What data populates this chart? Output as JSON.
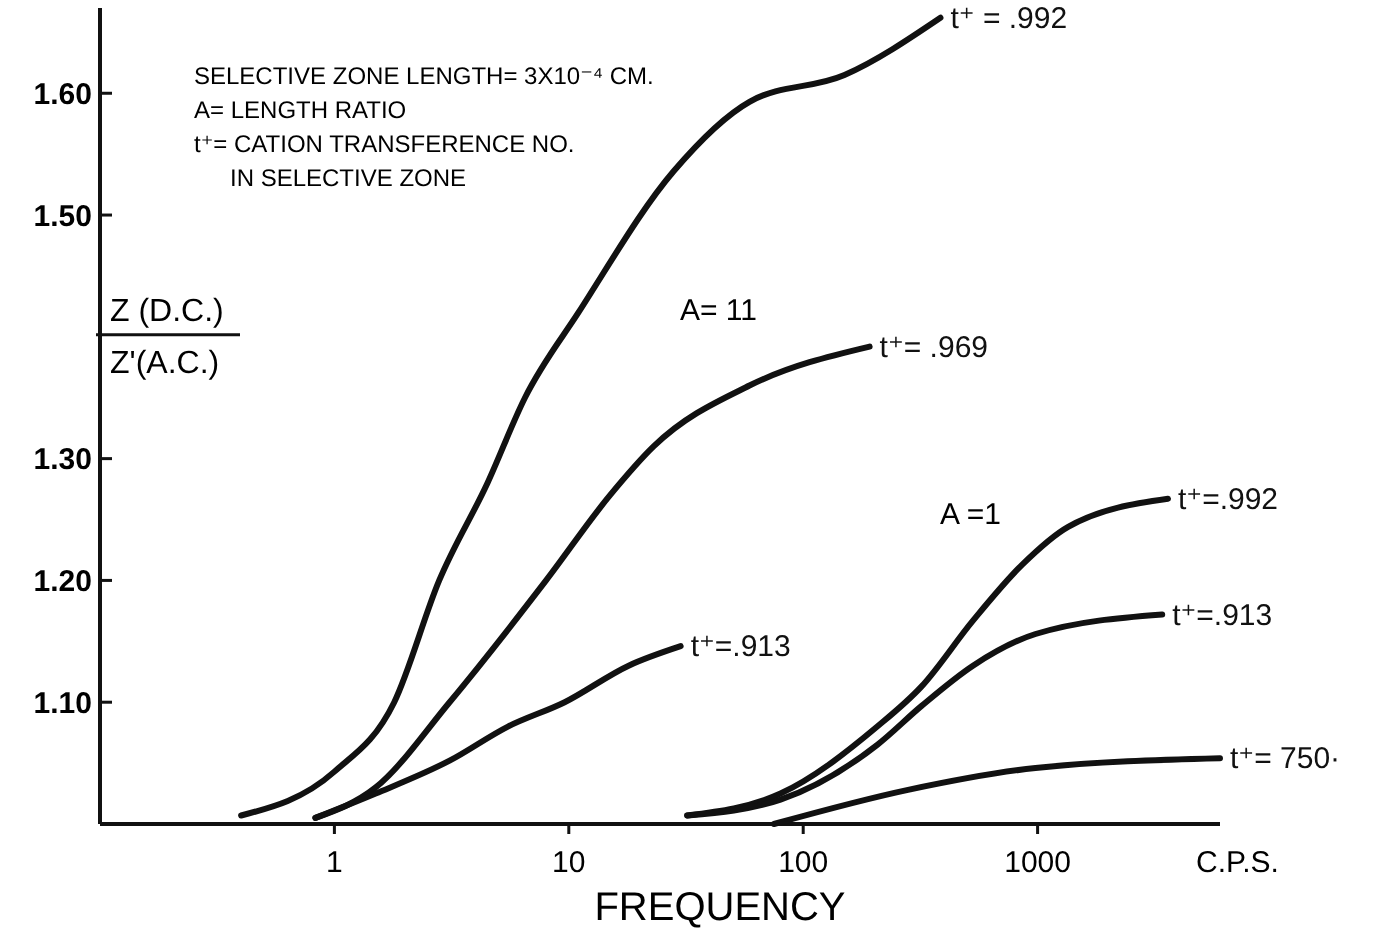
{
  "chart_data": {
    "type": "line",
    "xlabel": "FREQUENCY",
    "ylabel": "Z (D.C.) Z'(A.C.)",
    "log": "x",
    "xlim": [
      0.1,
      6000
    ],
    "ylim": [
      1.0,
      1.67
    ],
    "xticks": [
      1,
      10,
      100,
      1000
    ],
    "yticks": [
      {
        "value": 1.1,
        "label": "1.10"
      },
      {
        "value": 1.2,
        "label": "1.20"
      },
      {
        "value": 1.3,
        "label": "1.30"
      },
      {
        "value": 1.5,
        "label": "1.50"
      },
      {
        "value": 1.6,
        "label": "1.60"
      }
    ],
    "grid": false,
    "legend": false,
    "marker": "none",
    "line_style": "solid",
    "series": [
      {
        "name": "t⁺ = .992",
        "color": "#111111",
        "x": [
          0.4,
          1,
          1.8,
          2.8,
          4.5,
          6.5,
          11,
          28,
          59,
          150,
          385
        ],
        "values": [
          1.007,
          1.043,
          1.1,
          1.2,
          1.28,
          1.35,
          1.42,
          1.536,
          1.593,
          1.615,
          1.662
        ]
      },
      {
        "name": "t⁺= .969",
        "color": "#111111",
        "x": [
          0.83,
          1.5,
          3.1,
          8,
          15,
          23,
          59,
          192
        ],
        "values": [
          1.005,
          1.03,
          1.1,
          1.2,
          1.27,
          1.31,
          1.36,
          1.392
        ]
      },
      {
        "name": "t⁺=.913",
        "color": "#111111",
        "x": [
          0.83,
          1.5,
          3.1,
          5.5,
          9.6,
          18,
          30
        ],
        "values": [
          1.005,
          1.025,
          1.052,
          1.08,
          1.1,
          1.13,
          1.146
        ]
      },
      {
        "name": "t⁺=.992",
        "color": "#111111",
        "x": [
          32,
          80,
          207,
          320,
          530,
          860,
          1350,
          3600
        ],
        "values": [
          1.007,
          1.025,
          1.08,
          1.113,
          1.167,
          1.213,
          1.244,
          1.267
        ]
      },
      {
        "name": "t⁺=.913",
        "color": "#111111",
        "x": [
          32,
          80,
          207,
          320,
          530,
          980,
          3400
        ],
        "values": [
          1.007,
          1.02,
          1.065,
          1.097,
          1.13,
          1.156,
          1.172
        ]
      },
      {
        "name": "t⁺= 750·",
        "color": "#111111",
        "x": [
          75,
          280,
          980,
          6000
        ],
        "values": [
          1.0,
          1.028,
          1.046,
          1.054
        ]
      }
    ],
    "annotations": [
      "SELECTIVE ZONE LENGTH= 3X10⁻⁴ CM.",
      "A= LENGTH RATIO",
      "t⁺= CATION TRANSFERENCE NO.",
      "IN SELECTIVE ZONE",
      "A= 11",
      "A =1",
      "C.P.S."
    ]
  }
}
